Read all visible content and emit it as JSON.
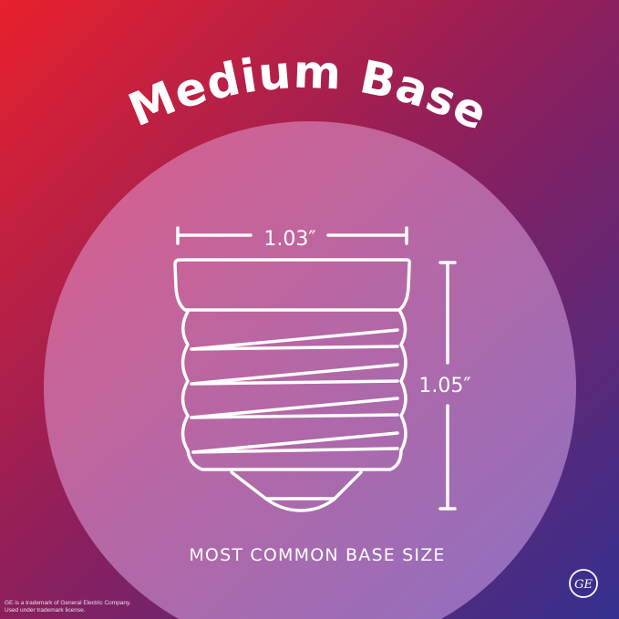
{
  "title": "Medium Base",
  "width_label": "1.03″",
  "height_label": "1.05″",
  "caption": "MOST COMMON BASE SIZE",
  "legal": [
    "GE is a trademark of General Electric Company.",
    "Used under trademark license."
  ],
  "logo": {
    "text": "GE",
    "icon": "ge-logo-icon"
  },
  "colors": {
    "bg_start": "#e8202c",
    "bg_mid": "#8a1f5e",
    "bg_end": "#34308f",
    "circle_start": "#dc5f8a",
    "circle_end": "#8d70c2",
    "line": "#ffffff"
  }
}
